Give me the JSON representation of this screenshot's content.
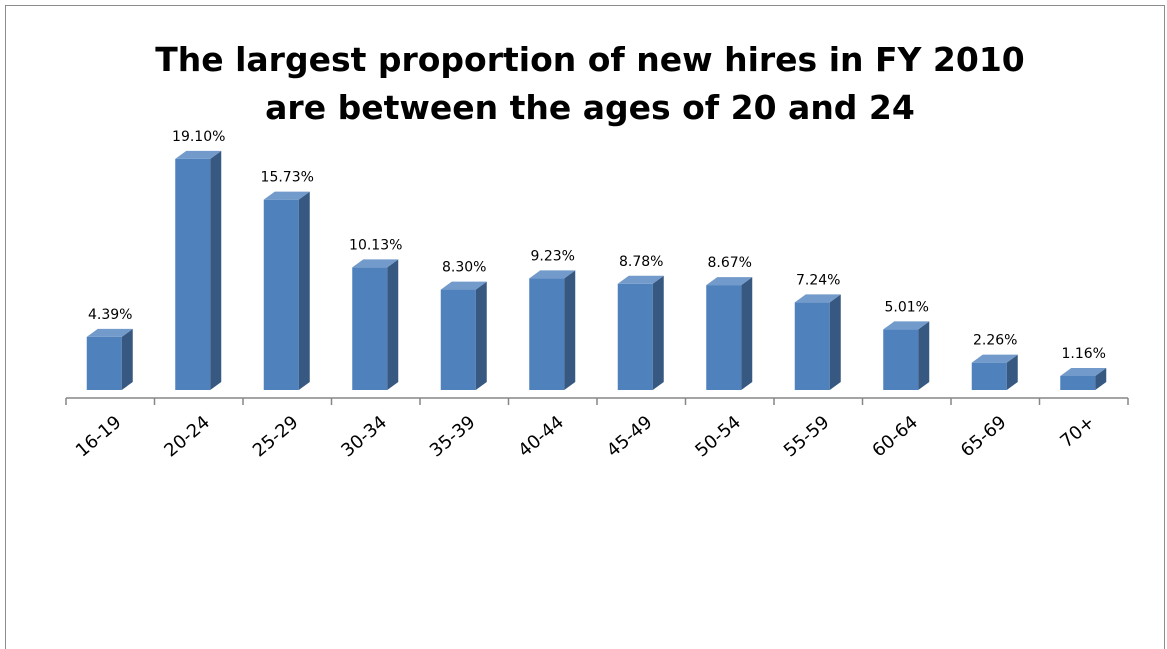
{
  "chart_data": {
    "type": "bar",
    "title": "The largest proportion of new hires in FY 2010 are between the ages of 20 and 24",
    "categories": [
      "16-19",
      "20-24",
      "25-29",
      "30-34",
      "35-39",
      "40-44",
      "45-49",
      "50-54",
      "55-59",
      "60-64",
      "65-69",
      "70+"
    ],
    "values": [
      4.39,
      19.1,
      15.73,
      10.13,
      8.3,
      9.23,
      8.78,
      8.67,
      7.24,
      5.01,
      2.26,
      1.16
    ],
    "value_labels": [
      "4.39%",
      "19.10%",
      "15.73%",
      "10.13%",
      "8.30%",
      "9.23%",
      "8.78%",
      "8.67%",
      "7.24%",
      "5.01%",
      "2.26%",
      "1.16%"
    ],
    "color": "#4f81bd"
  }
}
